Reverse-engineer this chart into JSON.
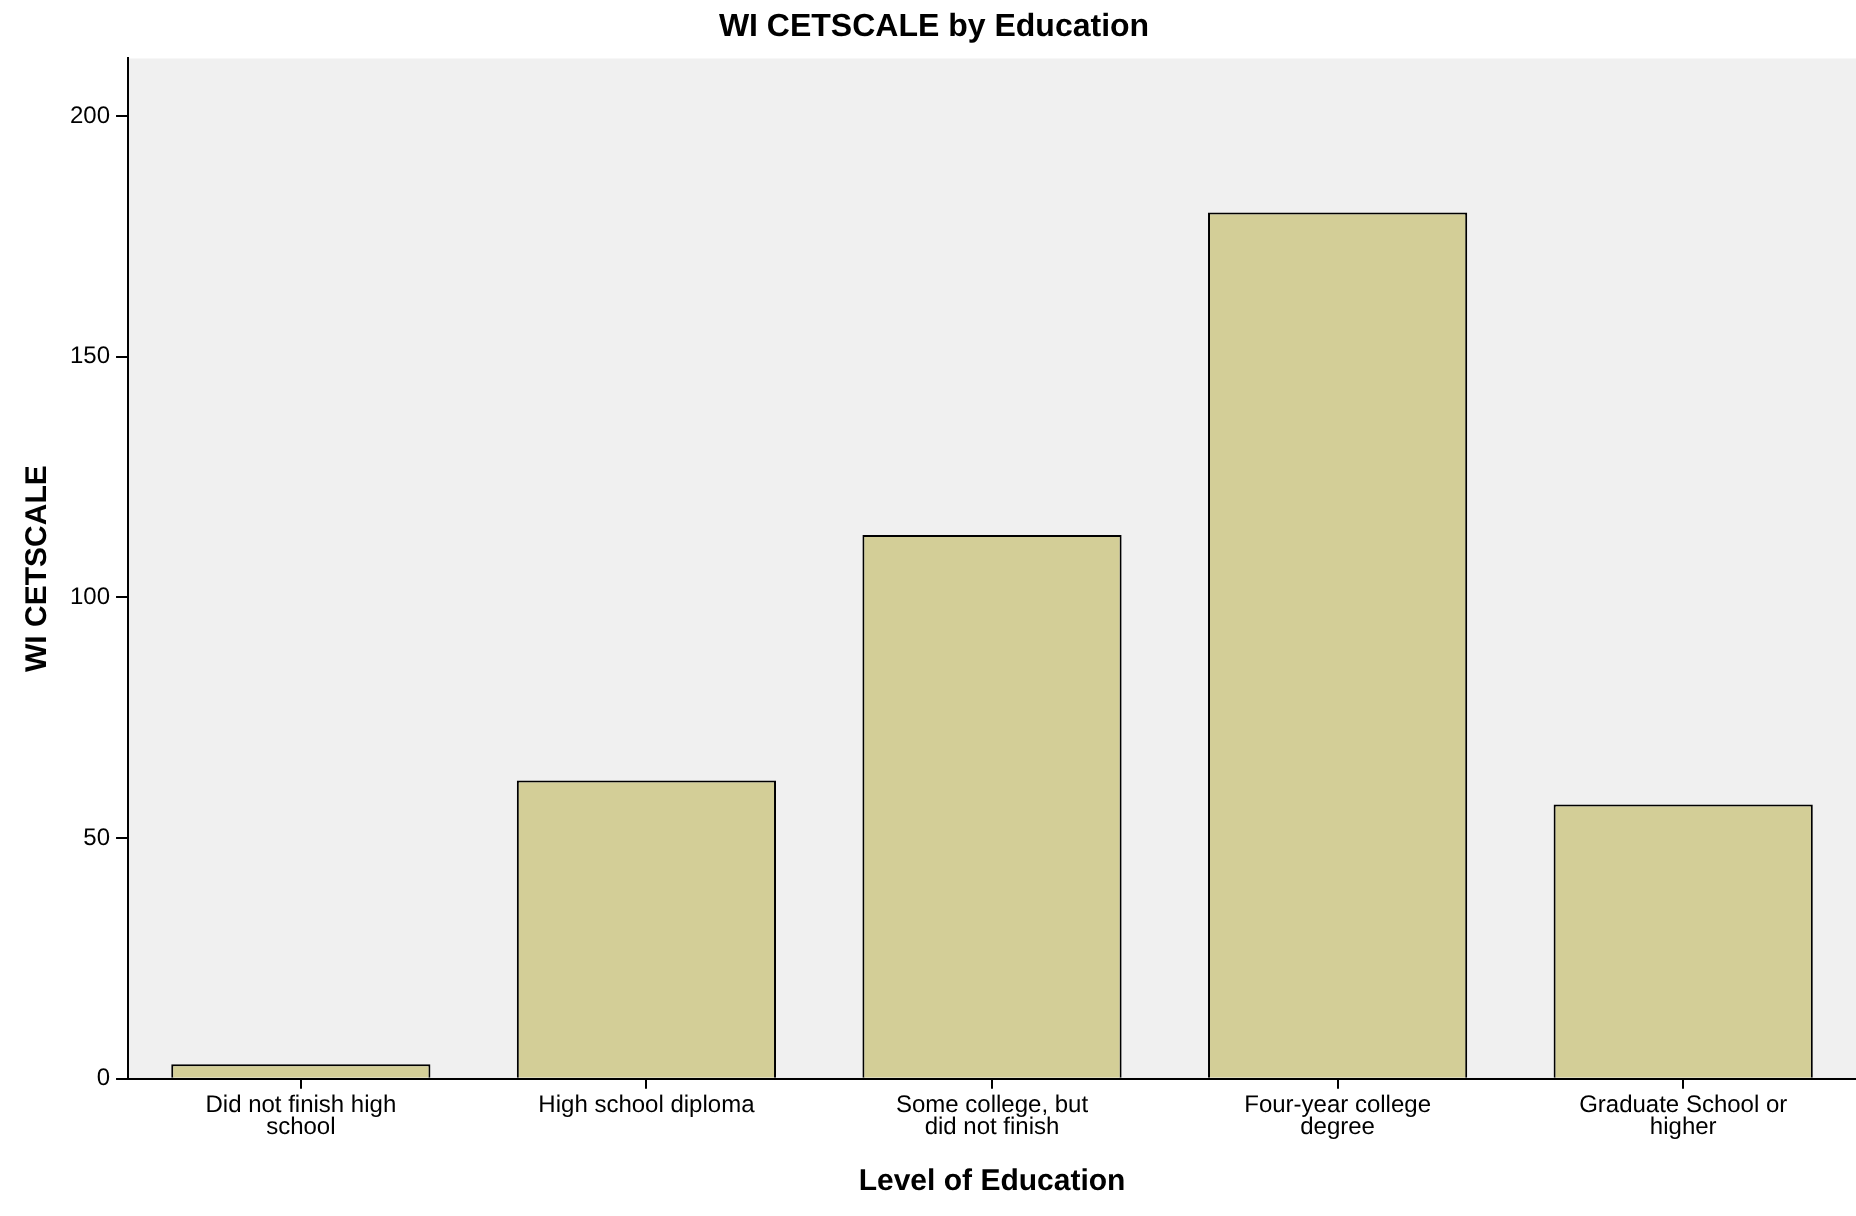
{
  "chart_data": {
    "type": "bar",
    "title": "WI CETSCALE by Education",
    "xlabel": "Level of Education",
    "ylabel": "WI CETSCALE",
    "categories": [
      "Did not finish high school",
      "High school diploma",
      "Some college, but did not finish",
      "Four-year college degree",
      "Graduate School or higher"
    ],
    "values": [
      3,
      62,
      113,
      180,
      57
    ],
    "color": "#d3ce97",
    "ylim": [
      0,
      212
    ],
    "yticks": [
      0,
      50,
      100,
      150,
      200
    ],
    "grid": false,
    "legend": false
  }
}
